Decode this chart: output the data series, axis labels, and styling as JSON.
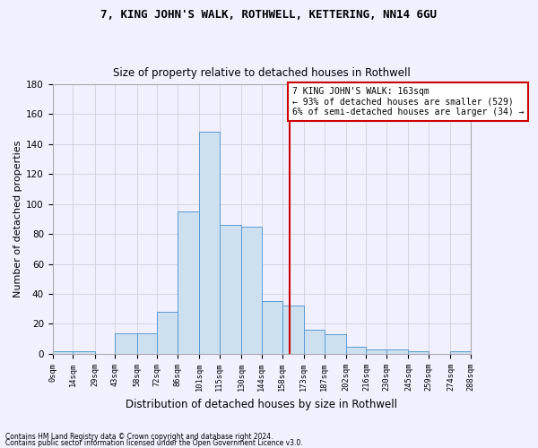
{
  "title": "7, KING JOHN'S WALK, ROTHWELL, KETTERING, NN14 6GU",
  "subtitle": "Size of property relative to detached houses in Rothwell",
  "xlabel": "Distribution of detached houses by size in Rothwell",
  "ylabel": "Number of detached properties",
  "bin_edges": [
    0,
    14,
    29,
    43,
    58,
    72,
    86,
    101,
    115,
    130,
    144,
    158,
    173,
    187,
    202,
    216,
    230,
    245,
    259,
    274,
    288
  ],
  "bar_heights": [
    2,
    2,
    0,
    14,
    14,
    28,
    95,
    148,
    86,
    85,
    35,
    32,
    16,
    13,
    5,
    3,
    3,
    2,
    0,
    2
  ],
  "bar_color": "#cce0f0",
  "bar_edge_color": "#5b9bd5",
  "vline_x": 163,
  "vline_color": "#cc0000",
  "annotation_text": "7 KING JOHN'S WALK: 163sqm\n← 93% of detached houses are smaller (529)\n6% of semi-detached houses are larger (34) →",
  "annotation_box_color": "#ffffff",
  "annotation_box_edge": "#cc0000",
  "ylim": [
    0,
    180
  ],
  "yticks": [
    0,
    20,
    40,
    60,
    80,
    100,
    120,
    140,
    160,
    180
  ],
  "tick_labels": [
    "0sqm",
    "14sqm",
    "29sqm",
    "43sqm",
    "58sqm",
    "72sqm",
    "86sqm",
    "101sqm",
    "115sqm",
    "130sqm",
    "144sqm",
    "158sqm",
    "173sqm",
    "187sqm",
    "202sqm",
    "216sqm",
    "230sqm",
    "245sqm",
    "259sqm",
    "274sqm",
    "288sqm"
  ],
  "footer1": "Contains HM Land Registry data © Crown copyright and database right 2024.",
  "footer2": "Contains public sector information licensed under the Open Government Licence v3.0.",
  "grid_color": "#d0d0d8",
  "bg_color": "#f0f0ff",
  "title_fontsize": 9,
  "subtitle_fontsize": 8.5,
  "ylabel_fontsize": 8,
  "xlabel_fontsize": 8.5
}
